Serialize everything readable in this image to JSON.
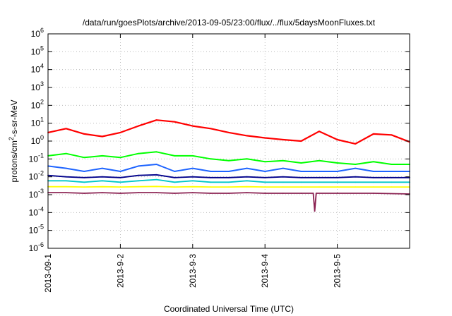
{
  "chart_data": {
    "type": "line",
    "title": "/data/run/goesPlots/archive/2013-09-05/23:00/flux/../flux/5daysMoonFluxes.txt",
    "xlabel": "Coordinated Universal Time (UTC)",
    "ylabel": "protons/cm2-s-sr-MeV",
    "yscale": "log",
    "ylim": [
      1e-06,
      1000000
    ],
    "xlim": [
      "2013-09-01 00:00",
      "2013-09-06 00:00"
    ],
    "grid": true,
    "y_ticks": [
      {
        "base": "10",
        "exp": "-6",
        "value": 1e-06
      },
      {
        "base": "10",
        "exp": "-5",
        "value": 1e-05
      },
      {
        "base": "10",
        "exp": "-4",
        "value": 0.0001
      },
      {
        "base": "10",
        "exp": "-3",
        "value": 0.001
      },
      {
        "base": "10",
        "exp": "-2",
        "value": 0.01
      },
      {
        "base": "10",
        "exp": "-1",
        "value": 0.1
      },
      {
        "base": "10",
        "exp": "0",
        "value": 1
      },
      {
        "base": "10",
        "exp": "1",
        "value": 10
      },
      {
        "base": "10",
        "exp": "2",
        "value": 100
      },
      {
        "base": "10",
        "exp": "3",
        "value": 1000
      },
      {
        "base": "10",
        "exp": "4",
        "value": 10000
      },
      {
        "base": "10",
        "exp": "5",
        "value": 100000
      },
      {
        "base": "10",
        "exp": "6",
        "value": 1000000
      }
    ],
    "x_ticks": [
      {
        "label": "2013-09-1",
        "value": "2013-09-01 00:00"
      },
      {
        "label": "2013-9-2",
        "value": "2013-09-02 00:00"
      },
      {
        "label": "2013-9-3",
        "value": "2013-09-03 00:00"
      },
      {
        "label": "2013-9-4",
        "value": "2013-09-04 00:00"
      },
      {
        "label": "2013-9-5",
        "value": "2013-09-05 00:00"
      }
    ],
    "series": [
      {
        "color": "#ff0000",
        "width": 2.2,
        "x": [
          "2013-09-01 00:00",
          "2013-09-01 06:00",
          "2013-09-01 12:00",
          "2013-09-01 18:00",
          "2013-09-02 00:00",
          "2013-09-02 06:00",
          "2013-09-02 12:00",
          "2013-09-02 18:00",
          "2013-09-03 00:00",
          "2013-09-03 06:00",
          "2013-09-03 12:00",
          "2013-09-03 18:00",
          "2013-09-04 00:00",
          "2013-09-04 06:00",
          "2013-09-04 12:00",
          "2013-09-04 18:00",
          "2013-09-05 00:00",
          "2013-09-05 06:00",
          "2013-09-05 12:00",
          "2013-09-05 18:00",
          "2013-09-06 00:00"
        ],
        "y": [
          3,
          5,
          2.5,
          1.8,
          3,
          7,
          15,
          12,
          7,
          5,
          3,
          2,
          1.5,
          1.2,
          1.0,
          3.5,
          1.2,
          0.7,
          2.5,
          2.2,
          0.9
        ]
      },
      {
        "color": "#00ff00",
        "width": 2.0,
        "x": [
          "2013-09-01 00:00",
          "2013-09-01 06:00",
          "2013-09-01 12:00",
          "2013-09-01 18:00",
          "2013-09-02 00:00",
          "2013-09-02 06:00",
          "2013-09-02 12:00",
          "2013-09-02 18:00",
          "2013-09-03 00:00",
          "2013-09-03 06:00",
          "2013-09-03 12:00",
          "2013-09-03 18:00",
          "2013-09-04 00:00",
          "2013-09-04 06:00",
          "2013-09-04 12:00",
          "2013-09-04 18:00",
          "2013-09-05 00:00",
          "2013-09-05 06:00",
          "2013-09-05 12:00",
          "2013-09-05 18:00",
          "2013-09-06 00:00"
        ],
        "y": [
          0.15,
          0.2,
          0.12,
          0.15,
          0.12,
          0.2,
          0.25,
          0.15,
          0.15,
          0.1,
          0.08,
          0.1,
          0.07,
          0.08,
          0.06,
          0.08,
          0.06,
          0.05,
          0.07,
          0.05,
          0.05
        ]
      },
      {
        "color": "#1e64ff",
        "width": 2.0,
        "x": [
          "2013-09-01 00:00",
          "2013-09-01 06:00",
          "2013-09-01 12:00",
          "2013-09-01 18:00",
          "2013-09-02 00:00",
          "2013-09-02 06:00",
          "2013-09-02 12:00",
          "2013-09-02 18:00",
          "2013-09-03 00:00",
          "2013-09-03 06:00",
          "2013-09-03 12:00",
          "2013-09-03 18:00",
          "2013-09-04 00:00",
          "2013-09-04 06:00",
          "2013-09-04 12:00",
          "2013-09-04 18:00",
          "2013-09-05 00:00",
          "2013-09-05 06:00",
          "2013-09-05 12:00",
          "2013-09-05 18:00",
          "2013-09-06 00:00"
        ],
        "y": [
          0.04,
          0.03,
          0.02,
          0.03,
          0.02,
          0.04,
          0.05,
          0.02,
          0.03,
          0.02,
          0.02,
          0.03,
          0.02,
          0.03,
          0.02,
          0.02,
          0.02,
          0.03,
          0.02,
          0.02,
          0.02
        ]
      },
      {
        "color": "#00c8c8",
        "width": 1.8,
        "x": [
          "2013-09-01 00:00",
          "2013-09-01 06:00",
          "2013-09-01 12:00",
          "2013-09-01 18:00",
          "2013-09-02 00:00",
          "2013-09-02 06:00",
          "2013-09-02 12:00",
          "2013-09-02 18:00",
          "2013-09-03 00:00",
          "2013-09-03 06:00",
          "2013-09-03 12:00",
          "2013-09-03 18:00",
          "2013-09-04 00:00",
          "2013-09-04 06:00",
          "2013-09-04 12:00",
          "2013-09-04 18:00",
          "2013-09-05 00:00",
          "2013-09-05 06:00",
          "2013-09-05 12:00",
          "2013-09-05 18:00",
          "2013-09-06 00:00"
        ],
        "y": [
          0.006,
          0.006,
          0.005,
          0.006,
          0.005,
          0.006,
          0.007,
          0.005,
          0.006,
          0.005,
          0.005,
          0.006,
          0.005,
          0.005,
          0.005,
          0.005,
          0.005,
          0.005,
          0.005,
          0.005,
          0.005
        ]
      },
      {
        "color": "#00008b",
        "width": 1.8,
        "x": [
          "2013-09-01 00:00",
          "2013-09-01 06:00",
          "2013-09-01 12:00",
          "2013-09-01 18:00",
          "2013-09-02 00:00",
          "2013-09-02 06:00",
          "2013-09-02 12:00",
          "2013-09-02 18:00",
          "2013-09-03 00:00",
          "2013-09-03 06:00",
          "2013-09-03 12:00",
          "2013-09-03 18:00",
          "2013-09-04 00:00",
          "2013-09-04 06:00",
          "2013-09-04 12:00",
          "2013-09-04 18:00",
          "2013-09-05 00:00",
          "2013-09-05 06:00",
          "2013-09-05 12:00",
          "2013-09-05 18:00",
          "2013-09-06 00:00"
        ],
        "y": [
          0.012,
          0.01,
          0.009,
          0.01,
          0.009,
          0.012,
          0.013,
          0.009,
          0.01,
          0.009,
          0.009,
          0.01,
          0.009,
          0.01,
          0.009,
          0.009,
          0.009,
          0.01,
          0.009,
          0.009,
          0.009
        ]
      },
      {
        "color": "#ffff00",
        "width": 1.8,
        "x": [
          "2013-09-01 00:00",
          "2013-09-01 06:00",
          "2013-09-01 12:00",
          "2013-09-01 18:00",
          "2013-09-02 00:00",
          "2013-09-02 06:00",
          "2013-09-02 12:00",
          "2013-09-02 18:00",
          "2013-09-03 00:00",
          "2013-09-03 06:00",
          "2013-09-03 12:00",
          "2013-09-03 18:00",
          "2013-09-04 00:00",
          "2013-09-04 06:00",
          "2013-09-04 12:00",
          "2013-09-04 18:00",
          "2013-09-05 00:00",
          "2013-09-05 06:00",
          "2013-09-05 12:00",
          "2013-09-05 18:00",
          "2013-09-06 00:00"
        ],
        "y": [
          0.0028,
          0.0028,
          0.0027,
          0.0028,
          0.0027,
          0.0028,
          0.0029,
          0.0027,
          0.0028,
          0.0027,
          0.0027,
          0.0028,
          0.0027,
          0.0027,
          0.0027,
          0.0027,
          0.0027,
          0.0027,
          0.0027,
          0.0027,
          0.0027
        ]
      },
      {
        "color": "#8b2252",
        "width": 1.8,
        "x": [
          "2013-09-01 00:00",
          "2013-09-01 06:00",
          "2013-09-01 12:00",
          "2013-09-01 18:00",
          "2013-09-02 00:00",
          "2013-09-02 06:00",
          "2013-09-02 12:00",
          "2013-09-02 18:00",
          "2013-09-03 00:00",
          "2013-09-03 06:00",
          "2013-09-03 12:00",
          "2013-09-03 18:00",
          "2013-09-04 00:00",
          "2013-09-04 06:00",
          "2013-09-04 12:00",
          "2013-09-04 16:00",
          "2013-09-04 16:30",
          "2013-09-04 17:00",
          "2013-09-05 00:00",
          "2013-09-05 12:00",
          "2013-09-06 00:00"
        ],
        "y": [
          0.0013,
          0.0013,
          0.0012,
          0.0013,
          0.0012,
          0.0013,
          0.0013,
          0.0012,
          0.0013,
          0.0012,
          0.0012,
          0.0013,
          0.0012,
          0.0012,
          0.0012,
          0.0012,
          0.00012,
          0.0012,
          0.0012,
          0.0012,
          0.0011
        ]
      }
    ]
  }
}
